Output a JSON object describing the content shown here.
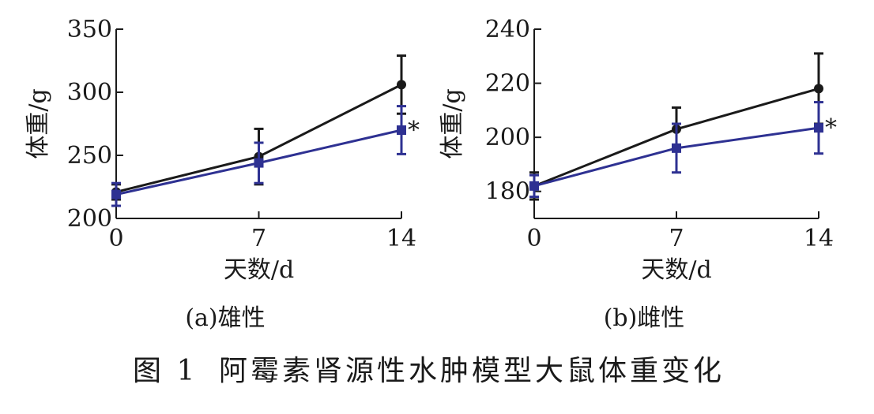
{
  "figure": {
    "caption_number": "图 1",
    "caption_text": "阿霉素肾源性水肿模型大鼠体重变化"
  },
  "colors": {
    "series_a": "#1a1a1a",
    "series_b": "#2e3192"
  },
  "chart_data": [
    {
      "type": "line",
      "panel_caption": "(a)雄性",
      "xlabel": "天数/d",
      "ylabel": "体重/g",
      "x": [
        0,
        7,
        14
      ],
      "xticks": [
        "0",
        "7",
        "14"
      ],
      "ylim": [
        200,
        350
      ],
      "yticks": [
        200,
        250,
        300,
        350
      ],
      "grid": false,
      "series": [
        {
          "values": [
            221,
            249,
            306
          ],
          "errors": [
            6,
            22,
            23
          ],
          "marker": "circle",
          "color": "#1a1a1a"
        },
        {
          "values": [
            219,
            244,
            270
          ],
          "errors": [
            9,
            16,
            19
          ],
          "marker": "square",
          "color": "#2e3192"
        }
      ],
      "annotations": [
        {
          "series": 1,
          "x": 14,
          "text": "*"
        }
      ]
    },
    {
      "type": "line",
      "panel_caption": "(b)雌性",
      "xlabel": "天数/d",
      "ylabel": "体重/g",
      "x": [
        0,
        7,
        14
      ],
      "xticks": [
        "0",
        "7",
        "14"
      ],
      "ylim": [
        170,
        240
      ],
      "yticks": [
        180,
        200,
        220,
        240
      ],
      "grid": false,
      "series": [
        {
          "values": [
            182,
            203,
            218
          ],
          "errors": [
            5,
            8,
            13
          ],
          "marker": "circle",
          "color": "#1a1a1a"
        },
        {
          "values": [
            182,
            196,
            203.5
          ],
          "errors": [
            4,
            9,
            9.5
          ],
          "marker": "square",
          "color": "#2e3192"
        }
      ],
      "annotations": [
        {
          "series": 1,
          "x": 14,
          "text": "*"
        }
      ]
    }
  ]
}
